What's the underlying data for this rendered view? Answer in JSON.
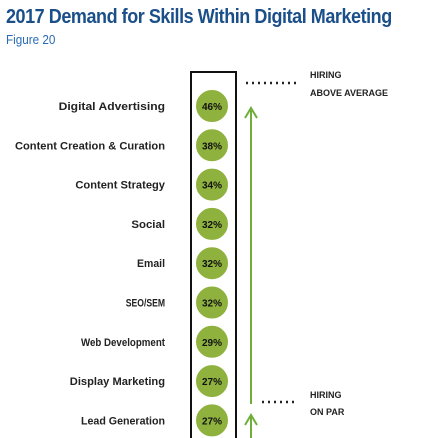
{
  "title": "2017 Demand for Skills Within Digital Marketing",
  "subtitle": "Figure 20",
  "colors": {
    "title": "#1b4f8a",
    "bubble_fill": "#8fb23f",
    "bubble_stroke": "#ffffff",
    "arrow": "#6fae3a",
    "column_border": "#111111"
  },
  "annotations": {
    "top": {
      "line1": "HIRING",
      "line2": "ABOVE AVERAGE"
    },
    "bottom": {
      "line1": "HIRING",
      "line2": "ON PAR"
    }
  },
  "chart_data": {
    "type": "table",
    "categories": [
      "Digital Advertising",
      "Content Creation & Curation",
      "Content Strategy",
      "Social",
      "Email",
      "SEO/SEM",
      "Web Development",
      "Display Marketing",
      "Lead Generation"
    ],
    "values": [
      46,
      38,
      34,
      32,
      32,
      32,
      29,
      27,
      27
    ],
    "value_labels": [
      "46%",
      "38%",
      "34%",
      "32%",
      "32%",
      "32%",
      "29%",
      "27%",
      "27%"
    ],
    "unit": "%"
  }
}
